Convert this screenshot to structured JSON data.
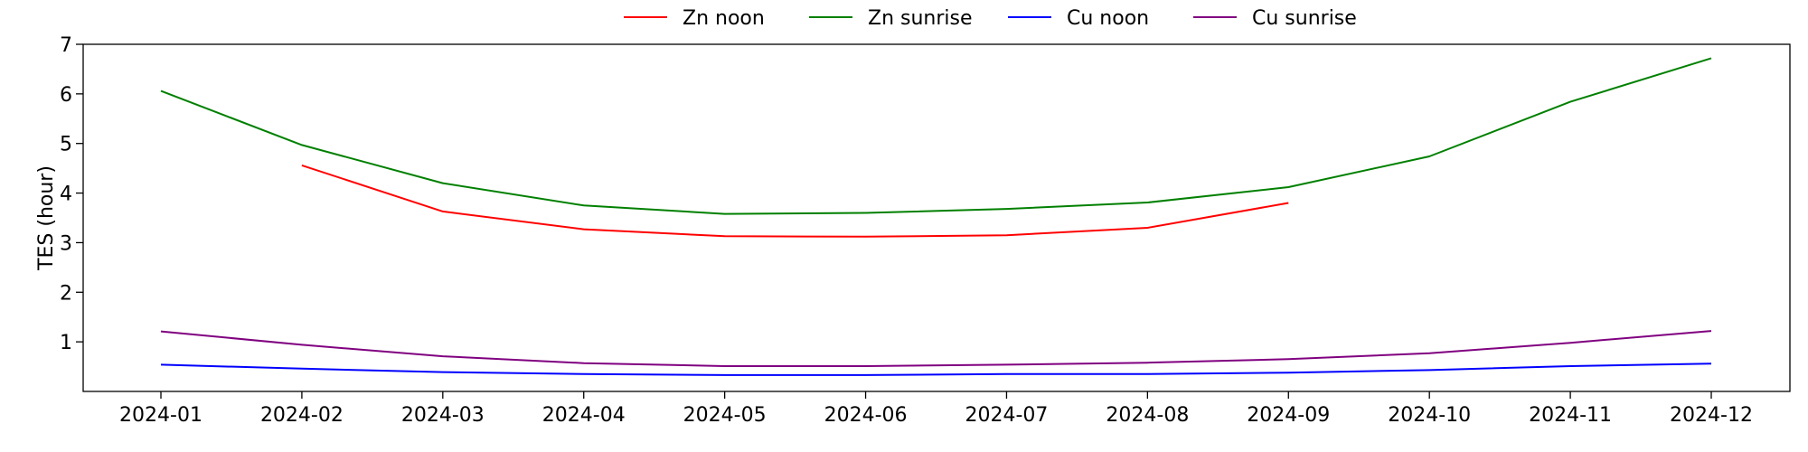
{
  "chart_data": {
    "type": "line",
    "title": "",
    "xlabel": "",
    "ylabel": "TES (hour)",
    "x": [
      "2024-01",
      "2024-02",
      "2024-03",
      "2024-04",
      "2024-05",
      "2024-06",
      "2024-07",
      "2024-08",
      "2024-09",
      "2024-10",
      "2024-11",
      "2024-12"
    ],
    "ylim": [
      0,
      7
    ],
    "yticks": [
      1,
      2,
      3,
      4,
      5,
      6,
      7
    ],
    "grid": false,
    "legend_position": "top-center",
    "series": [
      {
        "name": "Zn noon",
        "color": "#ff0000",
        "values": [
          null,
          4.56,
          3.63,
          3.27,
          3.13,
          3.12,
          3.15,
          3.3,
          3.8,
          null,
          null,
          null
        ]
      },
      {
        "name": "Zn sunrise",
        "color": "#008000",
        "values": [
          6.06,
          4.97,
          4.2,
          3.75,
          3.58,
          3.6,
          3.68,
          3.81,
          4.12,
          4.74,
          5.84,
          6.72
        ]
      },
      {
        "name": "Cu noon",
        "color": "#0000ff",
        "values": [
          0.54,
          0.46,
          0.39,
          0.35,
          0.33,
          0.33,
          0.35,
          0.35,
          0.38,
          0.43,
          0.51,
          0.56
        ]
      },
      {
        "name": "Cu sunrise",
        "color": "#800080",
        "values": [
          1.21,
          0.94,
          0.71,
          0.57,
          0.51,
          0.51,
          0.54,
          0.58,
          0.65,
          0.77,
          0.98,
          1.22
        ]
      }
    ]
  }
}
